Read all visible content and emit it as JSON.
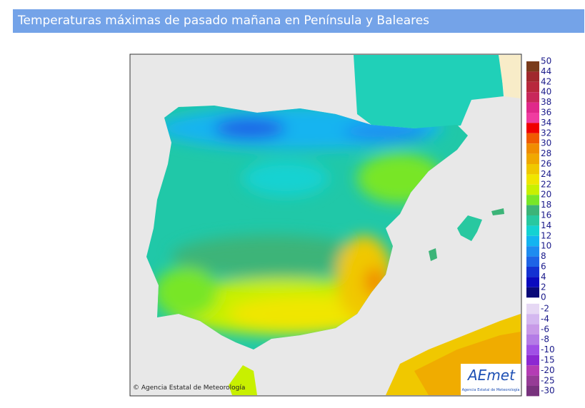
{
  "header": {
    "title": "Temperaturas máximas de pasado mañana en Península y Baleares"
  },
  "legend": {
    "upper_labels": [
      50,
      44,
      42,
      40,
      38,
      36,
      34,
      32,
      30,
      28,
      26,
      24,
      22,
      20,
      18,
      16,
      14,
      12,
      10,
      8,
      6,
      4,
      2,
      0
    ],
    "upper_colors": [
      "#7a3b1b",
      "#a0282c",
      "#b8283c",
      "#c8285a",
      "#e0288a",
      "#f03ca0",
      "#f00000",
      "#f05a00",
      "#f08c00",
      "#f0a800",
      "#f0c800",
      "#f0e600",
      "#c8f000",
      "#78e628",
      "#3cb478",
      "#28c8a0",
      "#14d2d2",
      "#14b4f0",
      "#1e8cf0",
      "#1e64e6",
      "#1432d2",
      "#0a0abe",
      "#0a0a78"
    ],
    "lower_labels": [
      -2,
      -4,
      -6,
      -8,
      -10,
      -15,
      -20,
      -25,
      -30
    ],
    "lower_colors": [
      "#e6d8f4",
      "#d4b8f0",
      "#c89ae8",
      "#b47ce6",
      "#a050e6",
      "#8c28d2",
      "#b43cb4",
      "#963c96",
      "#78327d"
    ]
  },
  "map": {
    "credit": "© Agencia Estatal de Meteorología",
    "logo": "AEmet",
    "logo_caption": "Agencia Estatal de Meteorología"
  }
}
